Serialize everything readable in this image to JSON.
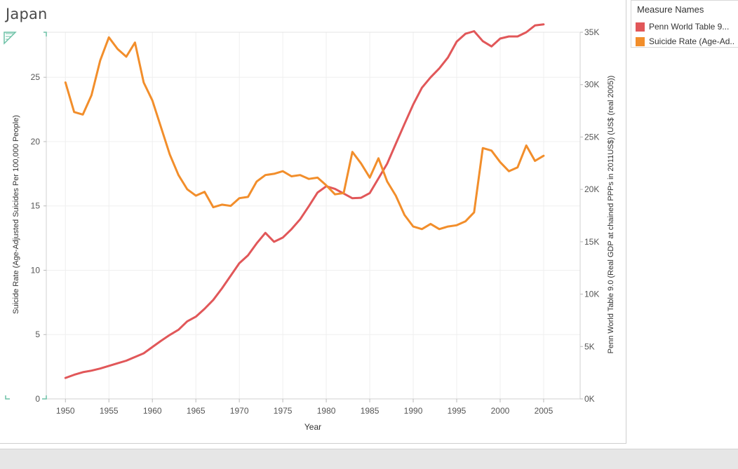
{
  "title": "Japan",
  "legend": {
    "title": "Measure Names",
    "items": [
      {
        "label": "Penn World Table 9...",
        "color": "#e15759"
      },
      {
        "label": "Suicide Rate (Age-Ad..",
        "color": "#f28e2b"
      }
    ]
  },
  "chart_data": {
    "type": "line",
    "xlabel": "Year",
    "ylabel_left": "Suicide Rate (Age-Adjusted Suicides Per 100,000 People)",
    "ylabel_right": "Penn World Table 9.0 (Real GDP at chained PPPs in 2011US$) (US$ (real 2005))",
    "x_ticks": [
      "1950",
      "1955",
      "1960",
      "1965",
      "1970",
      "1975",
      "1980",
      "1985",
      "1990",
      "1995",
      "2000",
      "2005"
    ],
    "y_left_ticks": [
      "0",
      "5",
      "10",
      "15",
      "20",
      "25"
    ],
    "y_right_ticks": [
      "0K",
      "5K",
      "10K",
      "15K",
      "20K",
      "25K",
      "30K",
      "35K"
    ],
    "xlim": [
      1947.8,
      2009.2
    ],
    "ylim_left": [
      0,
      28.5
    ],
    "ylim_right": [
      0,
      35000
    ],
    "grid": true,
    "legend_position": "right",
    "x": [
      1950,
      1951,
      1952,
      1953,
      1954,
      1955,
      1956,
      1957,
      1958,
      1959,
      1960,
      1961,
      1962,
      1963,
      1964,
      1965,
      1966,
      1967,
      1968,
      1969,
      1970,
      1971,
      1972,
      1973,
      1974,
      1975,
      1976,
      1977,
      1978,
      1979,
      1980,
      1981,
      1982,
      1983,
      1984,
      1985,
      1986,
      1987,
      1988,
      1989,
      1990,
      1991,
      1992,
      1993,
      1994,
      1995,
      1996,
      1997,
      1998,
      1999,
      2000,
      2001,
      2002,
      2003,
      2004,
      2005
    ],
    "series": [
      {
        "name": "Penn World Table 9...",
        "axis": "right",
        "color": "#e15759",
        "values": [
          2000,
          2300,
          2550,
          2700,
          2900,
          3150,
          3400,
          3650,
          4000,
          4350,
          4950,
          5550,
          6100,
          6600,
          7400,
          7850,
          8600,
          9450,
          10550,
          11750,
          12950,
          13700,
          14850,
          15850,
          15000,
          15400,
          16200,
          17150,
          18400,
          19700,
          20300,
          20050,
          19600,
          19150,
          19200,
          19650,
          21050,
          22450,
          24350,
          26250,
          28100,
          29700,
          30700,
          31550,
          32600,
          34100,
          34850,
          35100,
          34150,
          33650,
          34400,
          34600,
          34600,
          35000,
          35650,
          35750
        ]
      },
      {
        "name": "Suicide Rate (Age-Ad..",
        "axis": "left",
        "color": "#f28e2b",
        "values": [
          24.6,
          22.3,
          22.1,
          23.6,
          26.3,
          28.1,
          27.2,
          26.6,
          27.7,
          24.6,
          23.2,
          21.1,
          19.0,
          17.4,
          16.3,
          15.8,
          16.1,
          14.9,
          15.1,
          15.0,
          15.6,
          15.7,
          16.9,
          17.4,
          17.5,
          17.7,
          17.3,
          17.4,
          17.1,
          17.2,
          16.6,
          15.9,
          16.0,
          19.2,
          18.3,
          17.2,
          18.7,
          16.9,
          15.8,
          14.3,
          13.4,
          13.2,
          13.6,
          13.2,
          13.4,
          13.5,
          13.8,
          14.5,
          19.5,
          19.3,
          18.4,
          17.7,
          18.0,
          19.7,
          18.5,
          18.9
        ]
      }
    ]
  }
}
